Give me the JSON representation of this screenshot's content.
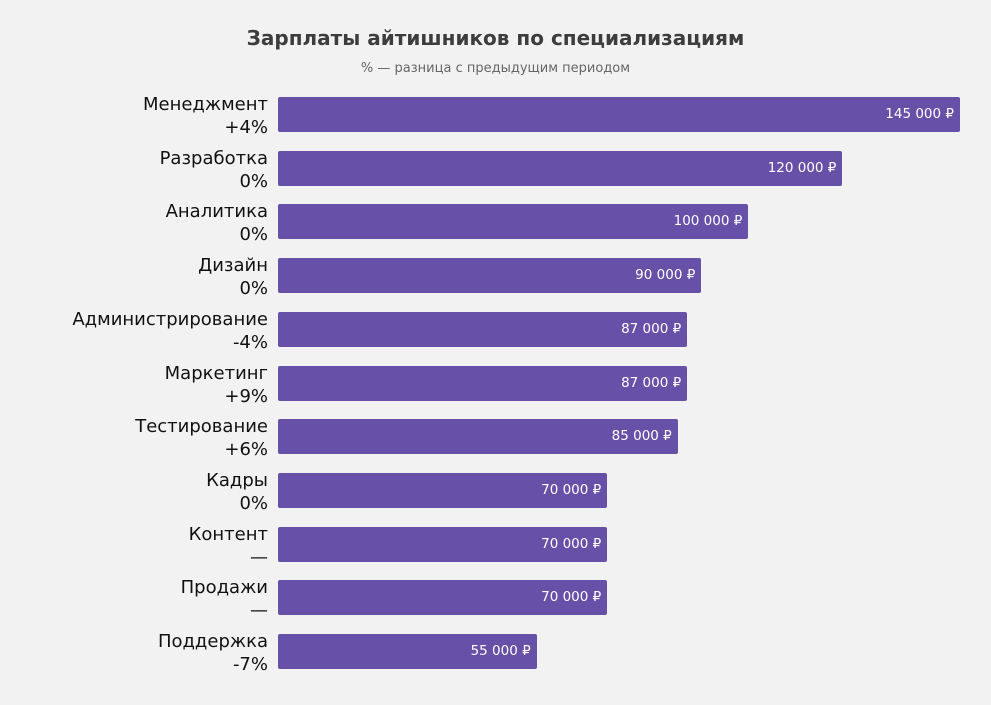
{
  "chart_data": {
    "type": "bar",
    "orientation": "horizontal",
    "title": "Зарплаты айтишников по специализациям",
    "subtitle": "% — разница с предыдущим периодом",
    "color": "#6750a8",
    "xlim": [
      0,
      145000
    ],
    "currency": "₽",
    "categories": [
      "Менеджмент",
      "Разработка",
      "Аналитика",
      "Дизайн",
      "Администрирование",
      "Маркетинг",
      "Тестирование",
      "Кадры",
      "Контент",
      "Продажи",
      "Поддержка"
    ],
    "changes": [
      "+4%",
      "0%",
      "0%",
      "0%",
      "-4%",
      "+9%",
      "+6%",
      "0%",
      "—",
      "—",
      "-7%"
    ],
    "values": [
      145000,
      120000,
      100000,
      90000,
      87000,
      87000,
      85000,
      70000,
      70000,
      70000,
      55000
    ],
    "value_labels": [
      "145 000 ₽",
      "120 000 ₽",
      "100 000 ₽",
      "90 000 ₽",
      "87 000 ₽",
      "87 000 ₽",
      "85 000 ₽",
      "70 000 ₽",
      "70 000 ₽",
      "70 000 ₽",
      "55 000 ₽"
    ]
  }
}
